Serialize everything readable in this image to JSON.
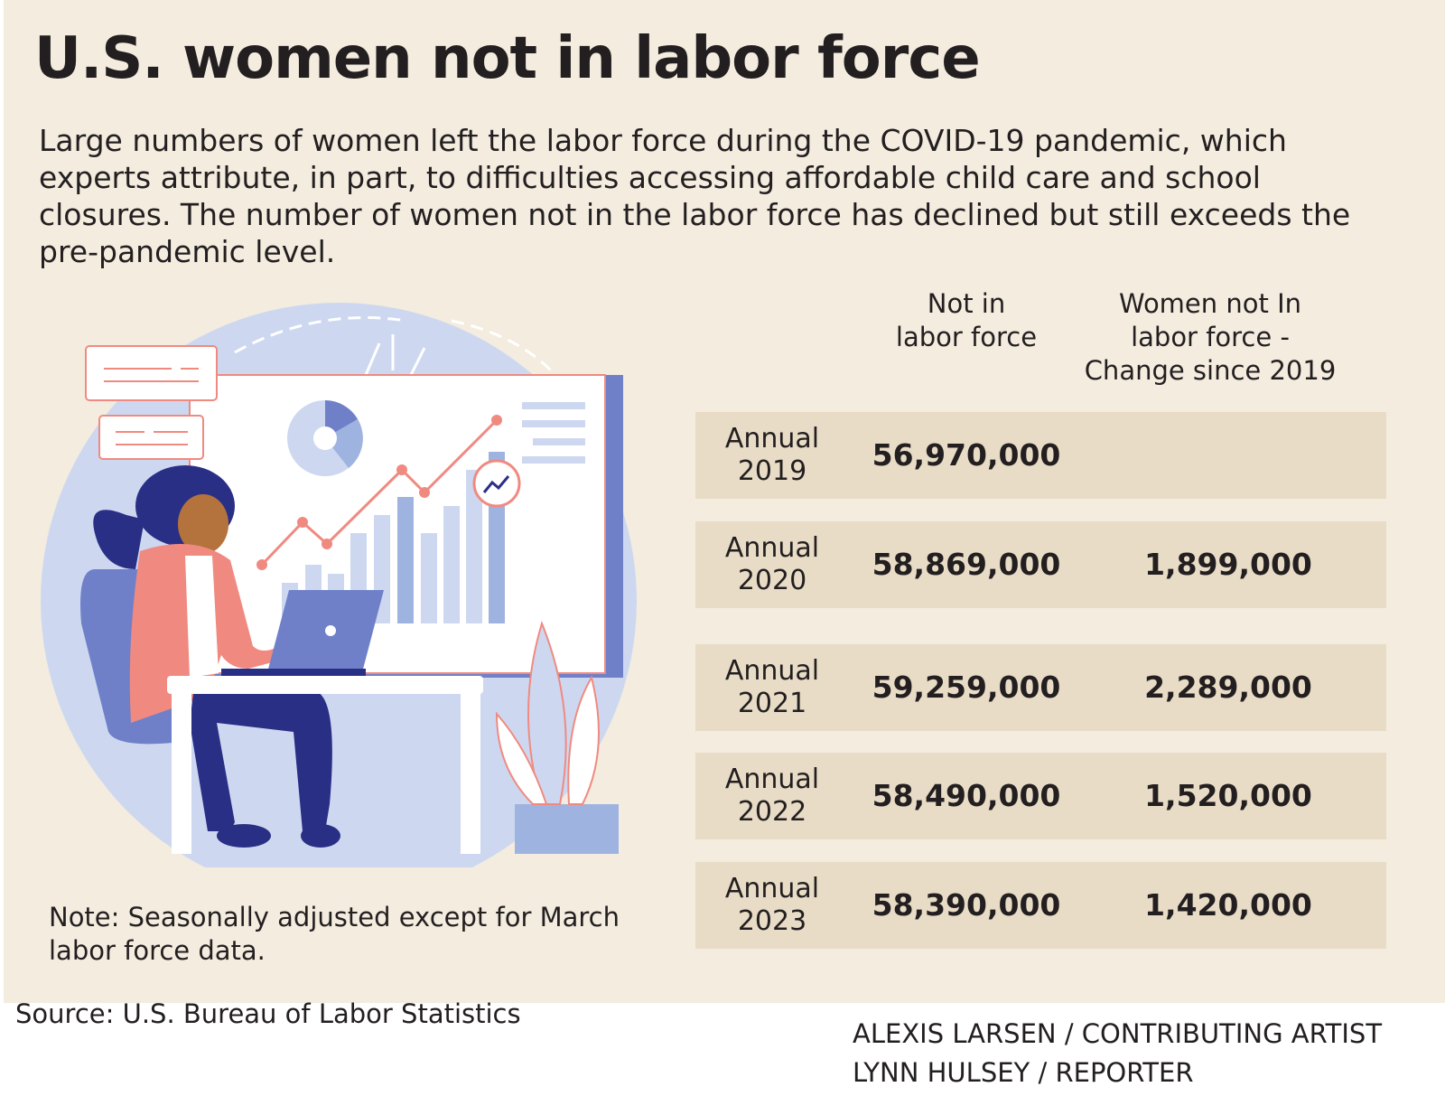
{
  "title": "U.S. women not in labor force",
  "subtitle": "Large numbers of women left the labor force during the COVID-19 pandemic, which experts attribute, in part, to difficulties accessing affordable child care and school closures. The number of women not in the labor force has declined but still exceeds the pre-pandemic level.",
  "colors": {
    "background": "#f3ecdf",
    "row": "#e8dcc6",
    "text": "#231f20",
    "accent_coral": "#f08a80",
    "accent_navy": "#2a2f86",
    "accent_blue": "#9fb3e0"
  },
  "chart_data": {
    "type": "table",
    "columns": [
      "",
      "Not in labor force",
      "Women not In labor force - Change since 2019"
    ],
    "rows": [
      {
        "period": "Annual 2019",
        "not_in_labor_force": "56,970,000",
        "change_since_2019": ""
      },
      {
        "period": "Annual 2020",
        "not_in_labor_force": "58,869,000",
        "change_since_2019": "1,899,000"
      },
      {
        "period": "Annual 2021",
        "not_in_labor_force": "59,259,000",
        "change_since_2019": "2,289,000"
      },
      {
        "period": "Annual 2022",
        "not_in_labor_force": "58,490,000",
        "change_since_2019": "1,520,000"
      },
      {
        "period": "Annual 2023",
        "not_in_labor_force": "58,390,000",
        "change_since_2019": "1,420,000"
      }
    ]
  },
  "table": {
    "header_1_line1": "Not in",
    "header_1_line2": "labor force",
    "header_2_line1": "Women not In",
    "header_2_line2": "labor force -",
    "header_2_line3": "Change since 2019",
    "rows": [
      {
        "label": "Annual",
        "year": "2019",
        "value": "56,970,000",
        "change": ""
      },
      {
        "label": "Annual",
        "year": "2020",
        "value": "58,869,000",
        "change": "1,899,000"
      },
      {
        "label": "Annual",
        "year": "2021",
        "value": "59,259,000",
        "change": "2,289,000"
      },
      {
        "label": "Annual",
        "year": "2022",
        "value": "58,490,000",
        "change": "1,520,000"
      },
      {
        "label": "Annual",
        "year": "2023",
        "value": "58,390,000",
        "change": "1,420,000"
      }
    ]
  },
  "note": "Note: Seasonally adjusted except for March labor force data.",
  "source": "Source: U.S. Bureau of Labor Statistics",
  "credit_artist": "ALEXIS LARSEN / CONTRIBUTING ARTIST",
  "credit_reporter": "LYNN HULSEY / REPORTER"
}
